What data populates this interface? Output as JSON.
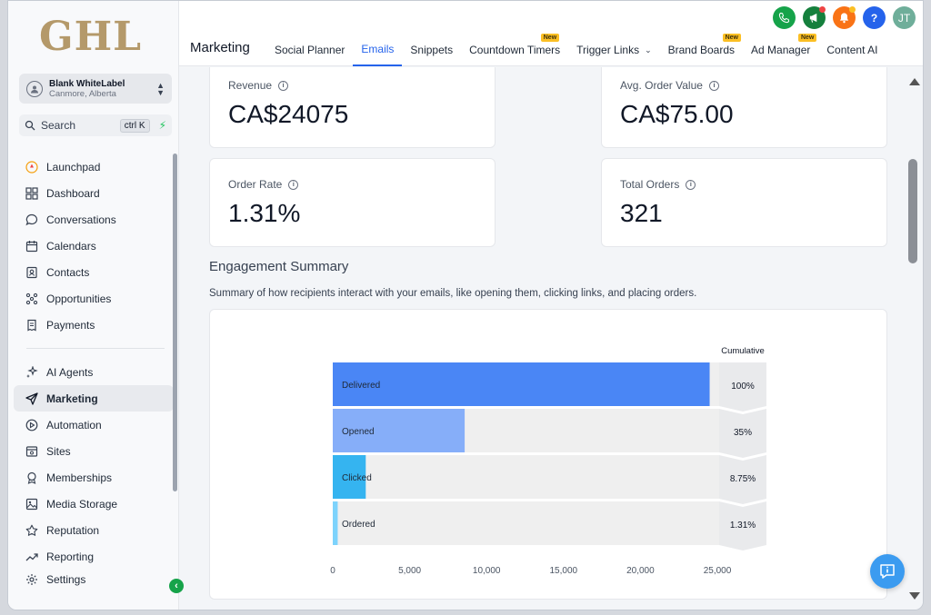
{
  "brand": {
    "logo_text": "GHL"
  },
  "account": {
    "name": "Blank WhiteLabel",
    "location": "Canmore, Alberta"
  },
  "search": {
    "label": "Search",
    "shortcut": "ctrl K"
  },
  "sidebar": {
    "items": [
      {
        "label": "Launchpad",
        "icon": "rocket-icon"
      },
      {
        "label": "Dashboard",
        "icon": "grid-icon"
      },
      {
        "label": "Conversations",
        "icon": "chat-icon"
      },
      {
        "label": "Calendars",
        "icon": "calendar-icon"
      },
      {
        "label": "Contacts",
        "icon": "contacts-icon"
      },
      {
        "label": "Opportunities",
        "icon": "funnel-icon"
      },
      {
        "label": "Payments",
        "icon": "receipt-icon"
      }
    ],
    "items2": [
      {
        "label": "AI Agents",
        "icon": "sparkles-icon"
      },
      {
        "label": "Marketing",
        "icon": "send-icon",
        "active": true
      },
      {
        "label": "Automation",
        "icon": "play-circle-icon"
      },
      {
        "label": "Sites",
        "icon": "browser-icon"
      },
      {
        "label": "Memberships",
        "icon": "award-icon"
      },
      {
        "label": "Media Storage",
        "icon": "image-icon"
      },
      {
        "label": "Reputation",
        "icon": "star-icon"
      },
      {
        "label": "Reporting",
        "icon": "trend-icon"
      },
      {
        "label": "Settings",
        "icon": "gear-icon"
      }
    ]
  },
  "header": {
    "title": "Marketing",
    "tabs": [
      {
        "label": "Social Planner"
      },
      {
        "label": "Emails",
        "active": true
      },
      {
        "label": "Snippets"
      },
      {
        "label": "Countdown Timers",
        "badge": "New"
      },
      {
        "label": "Trigger Links",
        "dropdown": true
      },
      {
        "label": "Brand Boards",
        "badge": "New"
      },
      {
        "label": "Ad Manager",
        "badge": "New"
      },
      {
        "label": "Content AI"
      }
    ],
    "user_initials": "JT",
    "help_glyph": "?"
  },
  "stats": {
    "revenue": {
      "label": "Revenue",
      "value": "CA$24075"
    },
    "aov": {
      "label": "Avg. Order Value",
      "value": "CA$75.00"
    },
    "order_rate": {
      "label": "Order Rate",
      "value": "1.31%"
    },
    "total_orders": {
      "label": "Total Orders",
      "value": "321"
    }
  },
  "engagement": {
    "title": "Engagement Summary",
    "description": "Summary of how recipients interact with your emails, like opening them, clicking links, and placing orders."
  },
  "chart_data": {
    "type": "bar",
    "orientation": "horizontal",
    "categories": [
      "Delivered",
      "Opened",
      "Clicked",
      "Ordered"
    ],
    "values": [
      24500,
      8575,
      2144,
      321
    ],
    "cumulative_header": "Cumulative",
    "cumulative": [
      "100%",
      "35%",
      "8.75%",
      "1.31%"
    ],
    "xlim": [
      0,
      25000
    ],
    "xticks": [
      0,
      5000,
      10000,
      15000,
      20000,
      25000
    ],
    "xtick_labels": [
      "0",
      "5,000",
      "10,000",
      "15,000",
      "20,000",
      "25,000"
    ],
    "colors": [
      "#4a86f5",
      "#86aef9",
      "#35b4f0",
      "#7dd3fc"
    ],
    "track_color": "#efefef"
  },
  "colors": {
    "accent": "#2563eb",
    "phone": "#16a34a",
    "megaphone": "#15803d",
    "bell": "#f97316",
    "help": "#2563eb",
    "avatar": "#6fae9a"
  }
}
